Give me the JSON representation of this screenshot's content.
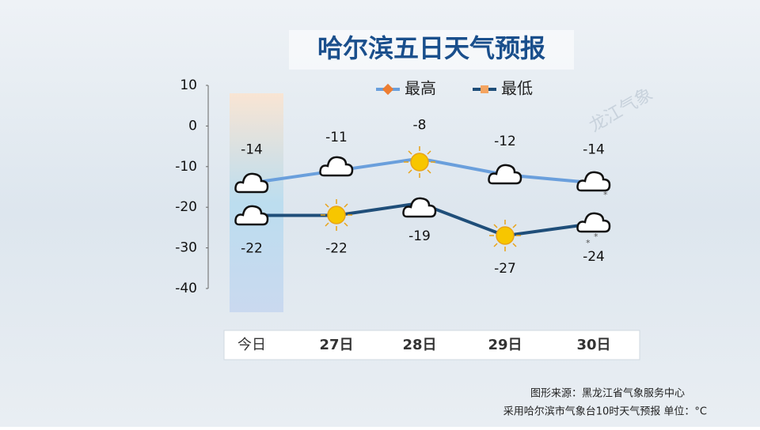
{
  "chart_data": {
    "type": "line",
    "title": "哈尔滨五日天气预报",
    "categories": [
      "今日",
      "27日",
      "28日",
      "29日",
      "30日"
    ],
    "series": [
      {
        "name": "最高",
        "color": "#6a9fdc",
        "marker_color": "#ed7d31",
        "values": [
          -14,
          -11,
          -8,
          -12,
          -14
        ]
      },
      {
        "name": "最低",
        "color": "#1f4e79",
        "marker_color": "#f4a460",
        "values": [
          -22,
          -22,
          -19,
          -27,
          -24
        ]
      }
    ],
    "ylim": [
      -40,
      10
    ],
    "yticks": [
      10,
      0,
      -10,
      -20,
      -30,
      -40
    ],
    "watermark": "龙江气象",
    "source": "图形来源：黑龙江省气象服务中心",
    "note": "采用哈尔滨市气象台10时天气预报 单位：°C"
  }
}
